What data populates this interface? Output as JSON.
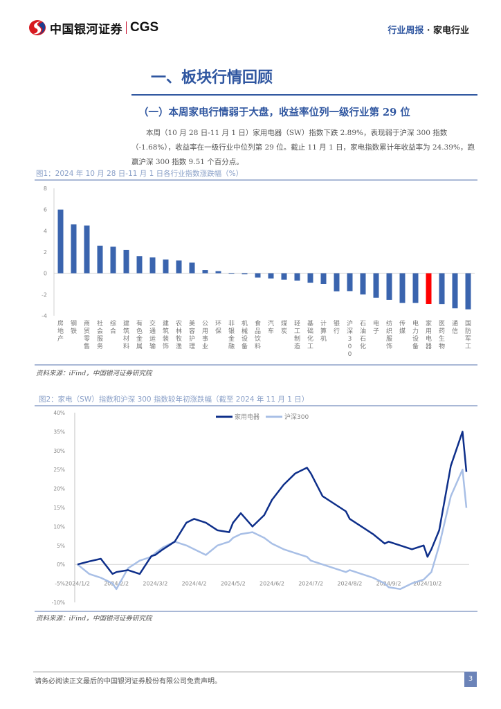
{
  "header": {
    "logo_text": "中国银河证券",
    "logo_brand": "CGS",
    "report_type": "行业周报",
    "separator": "·",
    "industry": "家电行业"
  },
  "section": {
    "title": "一、板块行情回顾",
    "subtitle": "（一）本周家电行情弱于大盘，收益率位列一级行业第 29 位",
    "paragraph": "本周（10 月 28 日-11 月 1 日）家用电器（SW）指数下跌 2.89%，表现弱于沪深 300 指数（-1.68%），收益率在一级行业中位列第 29 位。截止 11 月 1 日，家电指数累计年收益率为 24.39%，跑赢沪深 300 指数 9.51 个百分点。"
  },
  "figure1": {
    "title": "图1：2024 年 10 月 28 日-11 月 1 日各行业指数涨跌幅（%）",
    "source": "资料来源：iFind，中国银河证券研究院"
  },
  "figure2": {
    "title": "图2：家电（SW）指数和沪深 300 指数较年初涨跌幅（截至 2024 年 11 月 1 日）",
    "source": "资料来源：iFind，中国银河证券研究院"
  },
  "footer": {
    "disclaimer": "请务必阅读正文最后的中国银河证券股份有限公司免责声明。",
    "page_number": "3"
  },
  "colors": {
    "brand_blue": "#2f56a0",
    "bar_blue": "#3a64ae",
    "highlight_red": "#ff0000",
    "line_dark": "#0e2f8a",
    "line_light": "#a8bfe6"
  },
  "chart_data": [
    {
      "type": "bar",
      "title": "2024 年 10 月 28 日-11 月 1 日各行业指数涨跌幅（%）",
      "xlabel": "",
      "ylabel": "",
      "ylim": [
        -4,
        8
      ],
      "yticks": [
        8,
        6,
        4,
        2,
        0,
        -2,
        -4
      ],
      "grid": false,
      "highlight": "家用电器",
      "categories": [
        "房地产",
        "钢铁",
        "商贸零售",
        "社会服务",
        "综合",
        "建筑材料",
        "有色金属",
        "交通运输",
        "建筑装饰",
        "农林牧渔",
        "美容护理",
        "公用事业",
        "环保",
        "非银金融",
        "机械设备",
        "食品饮料",
        "汽车",
        "煤炭",
        "轻工制造",
        "基础化工",
        "计算机",
        "银行",
        "沪深300",
        "石油石化",
        "电子",
        "纺织服饰",
        "传媒",
        "电力设备",
        "家用电器",
        "医药生物",
        "通信",
        "国防军工"
      ],
      "values": [
        6.0,
        4.6,
        4.5,
        2.6,
        2.5,
        2.2,
        1.6,
        1.5,
        1.3,
        1.2,
        1.0,
        0.3,
        0.2,
        0.0,
        -0.1,
        -0.4,
        -0.5,
        -0.6,
        -0.7,
        -0.9,
        -1.0,
        -1.7,
        -1.68,
        -2.0,
        -2.3,
        -2.5,
        -2.8,
        -2.8,
        -2.89,
        -2.9,
        -3.3,
        -3.4
      ]
    },
    {
      "type": "line",
      "title": "家电（SW）指数和沪深 300 指数较年初涨跌幅",
      "xlabel": "",
      "ylabel": "",
      "ylim": [
        -10,
        40
      ],
      "yticks": [
        "40%",
        "35%",
        "30%",
        "25%",
        "20%",
        "15%",
        "10%",
        "5%",
        "0%",
        "-5%",
        "-10%"
      ],
      "xticks": [
        "2024/1/2",
        "2024/2/2",
        "2024/3/2",
        "2024/4/2",
        "2024/5/2",
        "2024/6/2",
        "2024/7/2",
        "2024/8/2",
        "2024/9/2",
        "2024/10/2"
      ],
      "legend": "top-right",
      "grid": false,
      "x": [
        0,
        0.3,
        0.6,
        0.9,
        1.0,
        1.3,
        1.6,
        1.9,
        2.0,
        2.2,
        2.5,
        2.8,
        3.0,
        3.3,
        3.6,
        3.9,
        4.0,
        4.2,
        4.5,
        4.8,
        5.0,
        5.3,
        5.6,
        5.9,
        6.0,
        6.3,
        6.6,
        6.9,
        7.0,
        7.3,
        7.6,
        7.9,
        8.0,
        8.3,
        8.6,
        8.9,
        9.0,
        9.1,
        9.3,
        9.6,
        9.9,
        10.0
      ],
      "series": [
        {
          "name": "家用电器",
          "values": [
            0,
            0.8,
            1.5,
            -2.5,
            -2,
            -1.5,
            -2.5,
            2.2,
            2.5,
            4,
            6,
            11,
            12,
            11,
            9,
            8.5,
            11,
            13.5,
            10,
            13,
            17,
            21,
            24,
            25.5,
            24,
            18,
            16,
            14,
            12,
            10,
            8,
            5.5,
            6,
            5,
            4,
            5,
            2,
            4,
            9,
            26,
            35,
            24.4
          ]
        },
        {
          "name": "沪深300",
          "values": [
            0,
            -2.5,
            -3.5,
            -5,
            -6.5,
            -1,
            1,
            2,
            3,
            4.5,
            6,
            5,
            4,
            2.5,
            5,
            6,
            7,
            8,
            8.5,
            7,
            5.5,
            4,
            3,
            2,
            1,
            0,
            -1,
            -2,
            -1.5,
            -2.5,
            -3.5,
            -5,
            -6,
            -6.5,
            -5,
            -4,
            -3,
            -2,
            5,
            18,
            25,
            14.9
          ]
        }
      ]
    }
  ]
}
